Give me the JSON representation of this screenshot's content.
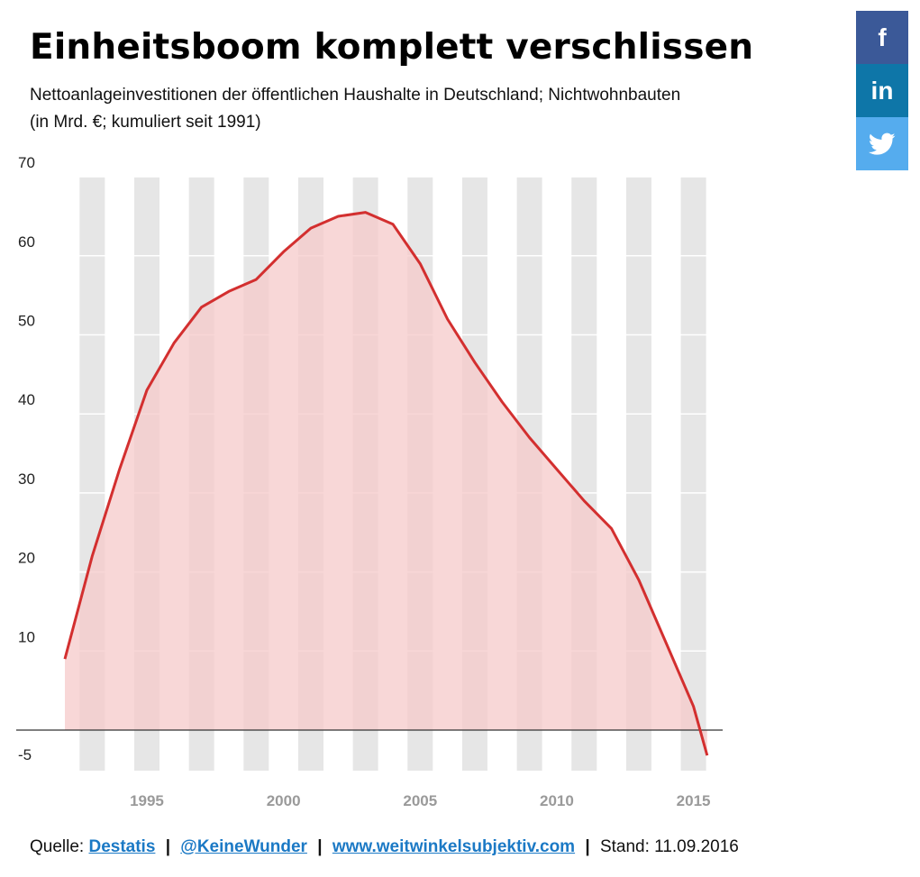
{
  "header": {
    "title": "Einheitsboom komplett verschlissen",
    "subtitle_line1": "Nettoanlageinvestitionen der öffentlichen Haushalte in Deutschland; Nichtwohnbauten",
    "subtitle_line2": "(in Mrd. €; kumuliert seit 1991)"
  },
  "social": {
    "facebook": "f",
    "linkedin": "in",
    "twitter_icon": "twitter-bird",
    "colors": {
      "facebook": "#3b5998",
      "linkedin": "#0e76a8",
      "twitter": "#55acee"
    }
  },
  "chart_data": {
    "type": "area",
    "x": [
      1992,
      1993,
      1994,
      1995,
      1996,
      1997,
      1998,
      1999,
      2000,
      2001,
      2002,
      2003,
      2004,
      2005,
      2006,
      2007,
      2008,
      2009,
      2010,
      2011,
      2012,
      2013,
      2014,
      2015
    ],
    "values": [
      9,
      22,
      33,
      43,
      49,
      53.5,
      55.5,
      57,
      60.5,
      63.5,
      65,
      65.5,
      64,
      59,
      52,
      46.5,
      41.5,
      37,
      33,
      29,
      25.5,
      19,
      11,
      3
    ],
    "end_point": [
      2015.5,
      -3.2
    ],
    "y_tick_labels": [
      "-5",
      "10",
      "20",
      "30",
      "40",
      "50",
      "60",
      "70"
    ],
    "x_tick_labels": [
      "1995",
      "2000",
      "2005",
      "2010",
      "2015"
    ],
    "xlim": [
      1991.5,
      2015.5
    ],
    "ylim": [
      -5,
      70
    ],
    "grid": true,
    "colors": {
      "line": "#d32f2f",
      "fill": "#f6c9c9",
      "stripe": "#e6e6e6"
    }
  },
  "footer": {
    "source_prefix": "Quelle:",
    "source_link": "Destatis",
    "twitter_link": "@KeineWunder",
    "web_link": "www.weitwinkelsubjektiv.com",
    "separator": "|",
    "stand": "Stand: 11.09.2016"
  }
}
